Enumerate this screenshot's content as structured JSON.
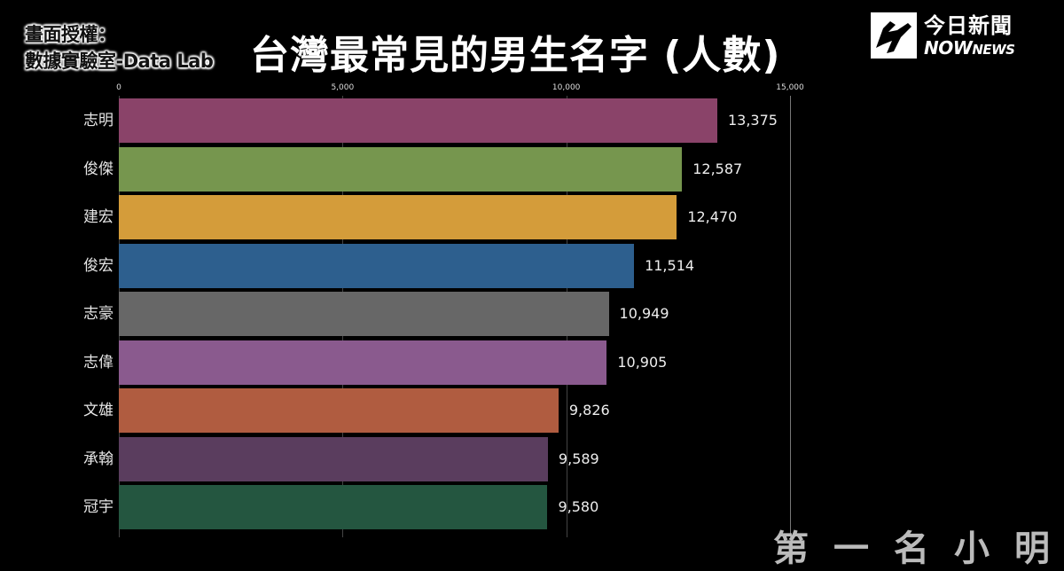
{
  "credit": {
    "line1": "畫面授權：",
    "line2": "數據實驗室-Data Lab"
  },
  "header": {
    "title": "台灣最常見的男生名字 (人數)"
  },
  "logo": {
    "cn": "今日新聞",
    "en_big": "NOW",
    "en_small": "NEWS"
  },
  "footer": {
    "partial_text": "第一名小明"
  },
  "colors": {
    "background": "#000000",
    "gridline": "#444444"
  },
  "chart_data": {
    "type": "bar",
    "orientation": "horizontal",
    "title": "台灣最常見的男生名字 (人數)",
    "xlabel": "",
    "ylabel": "",
    "xlim": [
      0,
      15000
    ],
    "x_ticks": [
      0,
      5000,
      10000,
      15000
    ],
    "x_tick_labels": [
      "0",
      "5,000",
      "10,000",
      "15,000"
    ],
    "grid": true,
    "categories": [
      "志明",
      "俊傑",
      "建宏",
      "俊宏",
      "志豪",
      "志偉",
      "文雄",
      "承翰",
      "冠宇"
    ],
    "values": [
      13375,
      12587,
      12470,
      11514,
      10949,
      10905,
      9826,
      9589,
      9580
    ],
    "value_labels": [
      "13,375",
      "12,587",
      "12,470",
      "11,514",
      "10,949",
      "10,905",
      "9,826",
      "9,589",
      "9,580"
    ],
    "bar_colors": [
      "#8a4369",
      "#76964e",
      "#d49c3a",
      "#2d5f8e",
      "#676767",
      "#8a5a8e",
      "#b05c40",
      "#5a3d5e",
      "#245640"
    ]
  }
}
